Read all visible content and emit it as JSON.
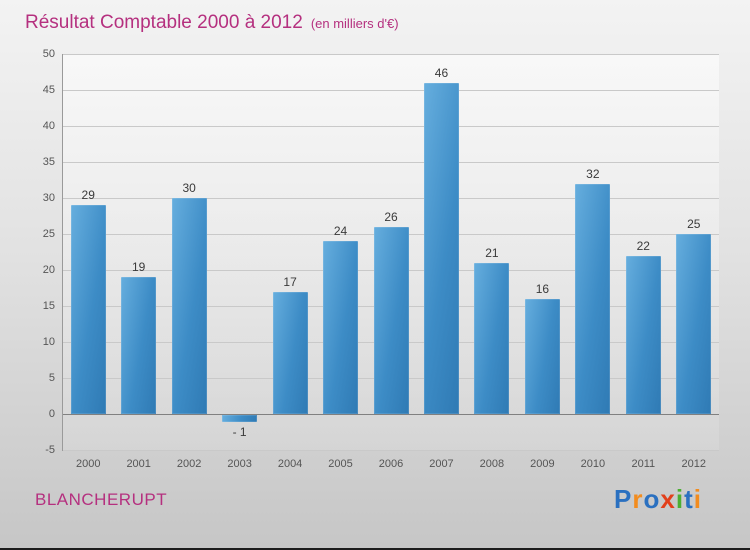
{
  "header": {
    "title": "Résultat Comptable 2000 à 2012",
    "subtitle": "(en milliers d'€)"
  },
  "chart_data": {
    "type": "bar",
    "title": "Résultat Comptable 2000 à 2012",
    "subtitle": "(en milliers d'€)",
    "categories": [
      "2000",
      "2001",
      "2002",
      "2003",
      "2004",
      "2005",
      "2006",
      "2007",
      "2008",
      "2009",
      "2010",
      "2011",
      "2012"
    ],
    "values": [
      29,
      19,
      30,
      -1,
      17,
      24,
      26,
      46,
      21,
      16,
      32,
      22,
      25
    ],
    "value_labels": [
      "29",
      "19",
      "30",
      "- 1",
      "17",
      "24",
      "26",
      "46",
      "21",
      "16",
      "32",
      "22",
      "25"
    ],
    "ylim": [
      -5,
      50
    ],
    "yticks": [
      -5,
      0,
      5,
      10,
      15,
      20,
      25,
      30,
      35,
      40,
      45,
      50
    ],
    "xlabel": "",
    "ylabel": "",
    "grid": true,
    "legend": "none",
    "bar_color": "#3d8cc6"
  },
  "footer": {
    "company": "BLANCHERUPT",
    "logo_letters": [
      {
        "ch": "P",
        "color": "#2a70c0"
      },
      {
        "ch": "r",
        "color": "#f28c1e"
      },
      {
        "ch": "o",
        "color": "#2a70c0"
      },
      {
        "ch": "x",
        "color": "#e2401b"
      },
      {
        "ch": "i",
        "color": "#4caf32"
      },
      {
        "ch": "t",
        "color": "#2a70c0"
      },
      {
        "ch": "i",
        "color": "#f28c1e"
      }
    ]
  }
}
